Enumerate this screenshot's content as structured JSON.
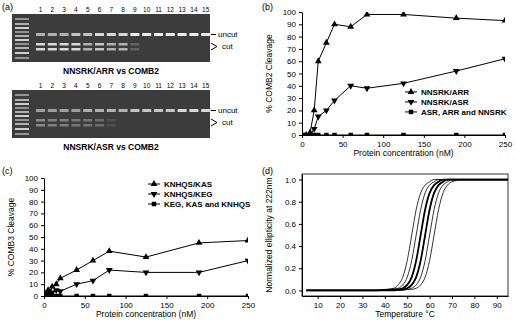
{
  "chart_data": [
    {
      "type": "gel",
      "panel_label": "(a)",
      "lanes": [
        "1",
        "2",
        "3",
        "4",
        "5",
        "6",
        "7",
        "8",
        "9",
        "10",
        "11",
        "12",
        "13",
        "14",
        "15"
      ],
      "band_labels": {
        "uncut": "uncut",
        "cut": "cut"
      },
      "gels": [
        {
          "title": "NNSRK/ARR vs COMB2",
          "uncut": [
            0.6,
            0.6,
            0.6,
            0.7,
            0.7,
            0.8,
            0.8,
            0.8,
            0.9,
            0.9,
            0.9,
            0.9,
            0.9,
            0.9,
            0.9
          ],
          "cut": [
            0.8,
            0.8,
            0.8,
            0.8,
            0.6,
            0.7,
            0.6,
            0.6,
            0.2,
            0,
            0,
            0,
            0,
            0,
            0
          ]
        },
        {
          "title": "NNSRK/ASR vs COMB2",
          "uncut": [
            0.5,
            0.5,
            0.5,
            0.5,
            0.6,
            0.6,
            0.6,
            0.6,
            0.7,
            0.7,
            0.7,
            0.7,
            0.8,
            0.8,
            0.8
          ],
          "cut": [
            0.4,
            0.35,
            0.35,
            0.3,
            0.3,
            0.25,
            0.1,
            0,
            0,
            0,
            0,
            0,
            0,
            0,
            0
          ]
        }
      ]
    },
    {
      "type": "line",
      "panel_label": "(b)",
      "x_label": "Protein concentration (nM)",
      "y_label": "% COMB2 Cleavage",
      "x": [
        0,
        5,
        10,
        15,
        20,
        30,
        40,
        60,
        80,
        125,
        190,
        250
      ],
      "series": [
        {
          "name": "NNSRK/ARR",
          "color": "#000000",
          "marker": "triangle-up",
          "values": [
            0,
            0,
            2,
            20,
            60,
            75,
            90,
            88,
            98,
            98,
            95,
            93
          ]
        },
        {
          "name": "NNSRK/ASR",
          "color": "#000000",
          "marker": "triangle-down",
          "values": [
            0,
            0,
            0,
            5,
            15,
            20,
            28,
            40,
            38,
            42,
            52,
            62
          ]
        },
        {
          "name": "ASR, ARR and NNSRK",
          "color": "#000000",
          "marker": "square",
          "values": [
            0,
            0,
            0,
            0,
            0,
            0,
            0,
            0,
            0,
            0,
            0,
            0
          ]
        }
      ],
      "xlim": [
        0,
        250
      ],
      "xticks": [
        0,
        50,
        100,
        150,
        200,
        250
      ],
      "ylim": [
        0,
        100
      ],
      "yticks": [
        0,
        10,
        20,
        30,
        40,
        50,
        60,
        70,
        80,
        90,
        100
      ],
      "legend": "right"
    },
    {
      "type": "line",
      "panel_label": "(c)",
      "x_label": "Protein concentration (nM)",
      "y_label": "% COMB3 Cleavage",
      "x": [
        0,
        2,
        5,
        8,
        10,
        15,
        20,
        40,
        60,
        80,
        125,
        190,
        250
      ],
      "series": [
        {
          "name": "KNHQS/KAS",
          "color": "#000000",
          "marker": "triangle-up",
          "values": [
            0,
            2,
            5,
            3,
            8,
            10,
            15,
            22,
            30,
            38,
            33,
            45,
            47
          ]
        },
        {
          "name": "KNHQS/KEG",
          "color": "#000000",
          "marker": "triangle-down",
          "values": [
            0,
            0,
            2,
            1,
            3,
            5,
            4,
            10,
            13,
            22,
            20,
            20,
            30
          ]
        },
        {
          "name": "KEG, KAS and KNHQS",
          "color": "#000000",
          "marker": "square",
          "values": [
            0,
            0,
            0,
            0,
            0,
            0,
            0,
            0,
            0,
            0,
            0,
            0,
            0
          ]
        }
      ],
      "xlim": [
        0,
        250
      ],
      "xticks": [
        0,
        50,
        100,
        150,
        200,
        250
      ],
      "ylim": [
        0,
        100
      ],
      "yticks": [
        0,
        10,
        20,
        30,
        40,
        50,
        60,
        70,
        80,
        90,
        100
      ],
      "legend": "top-right"
    },
    {
      "type": "line",
      "panel_label": "(d)",
      "x_label": "Temperature °C",
      "y_label": "Normalized ellipticity at 222nm",
      "x": [
        5,
        20,
        35,
        44,
        46,
        48,
        50,
        52,
        54,
        56,
        58,
        60,
        62,
        64,
        66,
        68,
        70,
        75,
        85,
        95
      ],
      "series": [
        {
          "color": "#000000",
          "line_style": "thin",
          "values": [
            0,
            0,
            0,
            0.02,
            0.05,
            0.12,
            0.27,
            0.5,
            0.73,
            0.88,
            0.95,
            0.98,
            1,
            1,
            1,
            1,
            1,
            1,
            1,
            1
          ]
        },
        {
          "color": "#000000",
          "line_style": "thin",
          "values": [
            0,
            0,
            0,
            0.01,
            0.02,
            0.05,
            0.12,
            0.27,
            0.5,
            0.73,
            0.88,
            0.95,
            0.98,
            1,
            1,
            1,
            1,
            1,
            1,
            1
          ]
        },
        {
          "color": "#000000",
          "line_style": "bold",
          "values": [
            0,
            0,
            0,
            0.01,
            0.01,
            0.02,
            0.05,
            0.12,
            0.27,
            0.5,
            0.73,
            0.88,
            0.95,
            0.98,
            1,
            1,
            1,
            1,
            1,
            1
          ]
        },
        {
          "color": "#000000",
          "line_style": "bold",
          "values": [
            0,
            0,
            0,
            0,
            0.01,
            0.01,
            0.02,
            0.05,
            0.12,
            0.27,
            0.5,
            0.73,
            0.88,
            0.95,
            0.98,
            1,
            1,
            1,
            1,
            1
          ]
        },
        {
          "color": "#000000",
          "line_style": "thin",
          "values": [
            0,
            0,
            0,
            0,
            0,
            0.01,
            0.01,
            0.02,
            0.05,
            0.12,
            0.27,
            0.5,
            0.73,
            0.88,
            0.95,
            0.98,
            1,
            1,
            1,
            1
          ]
        },
        {
          "color": "#000000",
          "line_style": "thin",
          "values": [
            0,
            0,
            0,
            0,
            0,
            0,
            0.01,
            0.01,
            0.02,
            0.05,
            0.12,
            0.27,
            0.5,
            0.73,
            0.88,
            0.95,
            0.98,
            1,
            1,
            1
          ]
        }
      ],
      "xlim": [
        3,
        95
      ],
      "xticks": [
        10,
        20,
        30,
        40,
        50,
        60,
        70,
        80,
        90
      ],
      "ylim": [
        -0.05,
        1.05
      ],
      "yticks": [
        {
          "value": 0,
          "label": "0.0"
        },
        0.2,
        0.4,
        0.6,
        0.8,
        {
          "value": 1,
          "label": "1.0"
        }
      ]
    }
  ]
}
